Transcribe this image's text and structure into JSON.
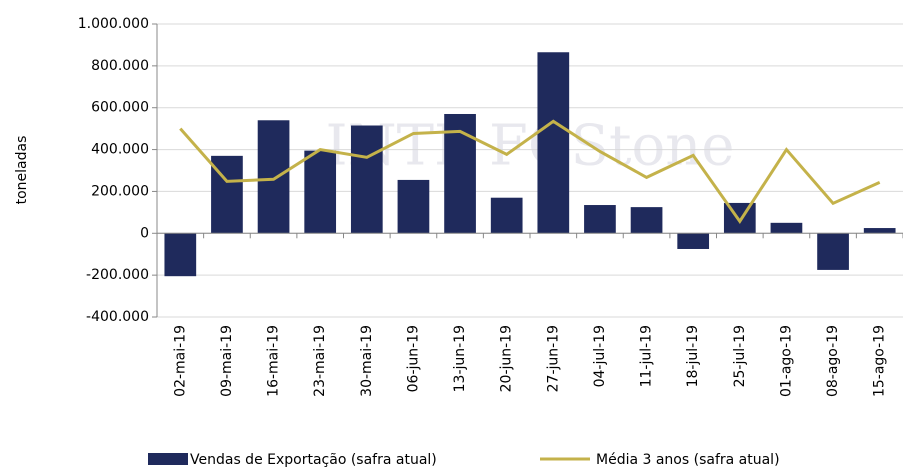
{
  "chart_data": {
    "type": "bar_line",
    "watermark": "INTL FCStone",
    "y_axis_label": "toneladas",
    "categories": [
      "02-mai-19",
      "09-mai-19",
      "16-mai-19",
      "23-mai-19",
      "30-mai-19",
      "06-jun-19",
      "13-jun-19",
      "20-jun-19",
      "27-jun-19",
      "04-jul-19",
      "11-jul-19",
      "18-jul-19",
      "25-jul-19",
      "01-ago-19",
      "08-ago-19",
      "15-ago-19"
    ],
    "series": [
      {
        "name": "Vendas de Exportação (safra atual)",
        "type": "bar",
        "color": "#1f2a5c",
        "values": [
          -205000,
          370000,
          540000,
          395000,
          515000,
          255000,
          570000,
          170000,
          865000,
          135000,
          125000,
          -75000,
          145000,
          50000,
          -175000,
          25000
        ]
      },
      {
        "name": "Média 3 anos (safra atual)",
        "type": "line",
        "color": "#c4b24a",
        "values": [
          500000,
          248000,
          258000,
          400000,
          363000,
          477000,
          487000,
          377000,
          535000,
          391000,
          267000,
          372000,
          57000,
          400000,
          143000,
          243000
        ]
      }
    ],
    "ylim": [
      -400000,
      1000000
    ],
    "yticks": [
      {
        "value": -400000,
        "label": "-400.000"
      },
      {
        "value": -200000,
        "label": "-200.000"
      },
      0,
      {
        "value": 200000,
        "label": "200.000"
      },
      {
        "value": 400000,
        "label": "400.000"
      },
      {
        "value": 600000,
        "label": "600.000"
      },
      {
        "value": 800000,
        "label": "800.000"
      },
      {
        "value": 1000000,
        "label": "1.000.000"
      }
    ],
    "grid": true
  }
}
